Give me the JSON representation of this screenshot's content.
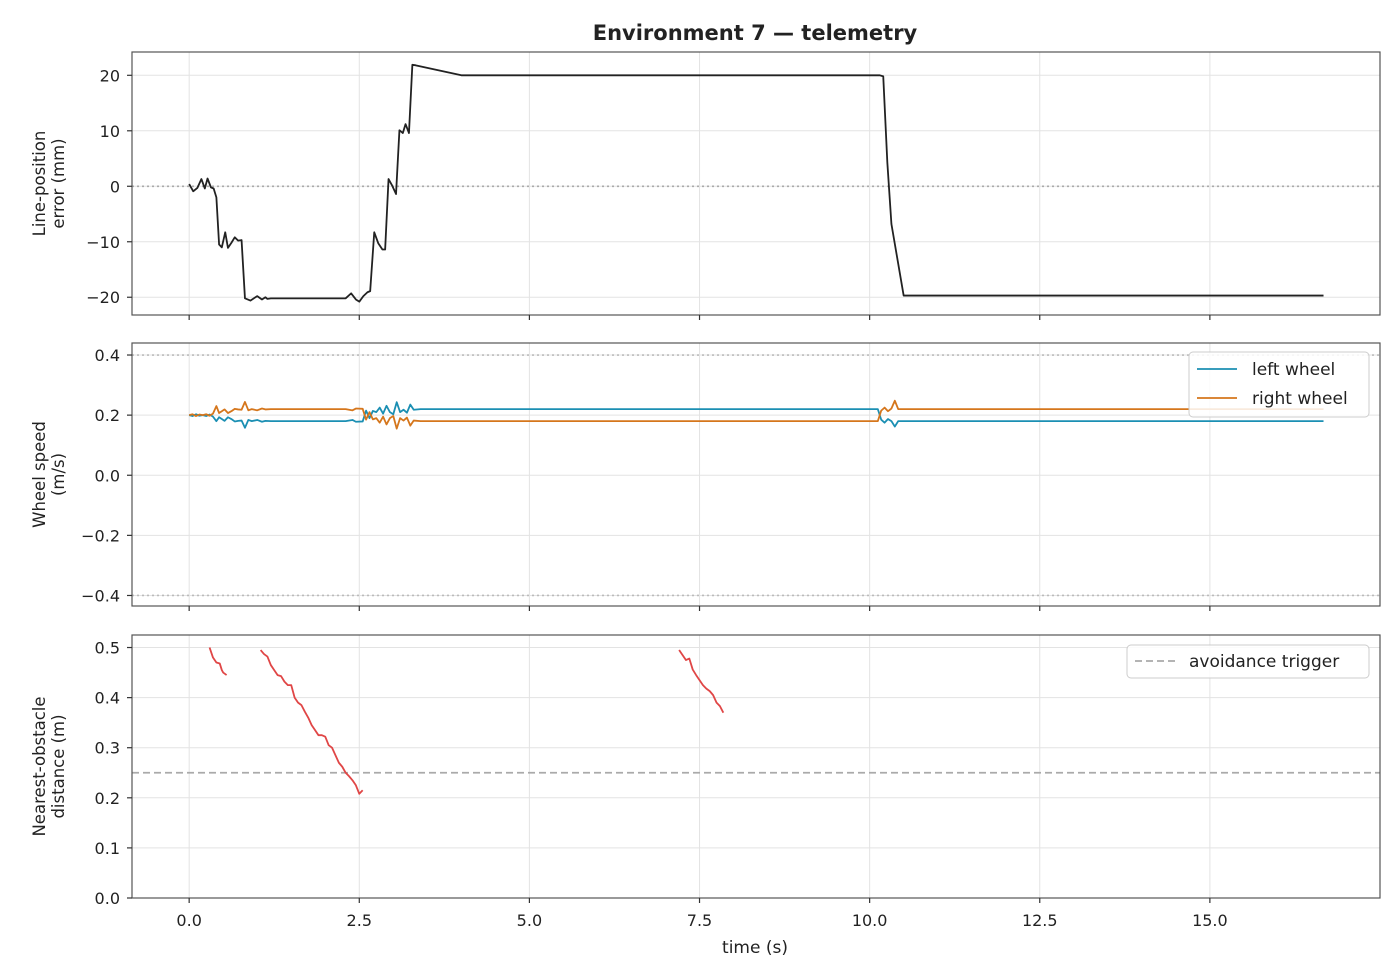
{
  "chart_data": [
    {
      "type": "line",
      "title": "Environment 7 — telemetry",
      "ylabel": [
        "Line-position",
        "error (mm)"
      ],
      "xlabel": "",
      "xlim": [
        -0.84,
        17.5
      ],
      "ylim": [
        -23.2,
        24.2
      ],
      "xticks": [
        0,
        2.5,
        5,
        7.5,
        10,
        12.5,
        15
      ],
      "xtick_labels": [],
      "yticks": [
        20,
        10,
        0,
        -10,
        -20
      ],
      "ytick_labels": [
        "20",
        "10",
        "0",
        "−10",
        "−20"
      ],
      "grid": true,
      "reference_lines": [
        {
          "y": 0,
          "style": "dotted",
          "color": "#aaaaaa"
        }
      ],
      "series": [
        {
          "color": "#222222",
          "x": [
            0.0,
            0.06,
            0.12,
            0.18,
            0.23,
            0.27,
            0.32,
            0.36,
            0.4,
            0.44,
            0.48,
            0.53,
            0.57,
            0.62,
            0.67,
            0.72,
            0.77,
            0.82,
            0.9,
            1.0,
            1.07,
            1.12,
            1.15,
            1.2,
            1.5,
            2.0,
            2.3,
            2.38,
            2.45,
            2.5,
            2.56,
            2.62,
            2.66,
            2.72,
            2.78,
            2.84,
            2.88,
            2.93,
            2.98,
            3.04,
            3.09,
            3.14,
            3.18,
            3.23,
            3.28,
            3.33,
            4.0,
            6.0,
            8.0,
            10.0,
            10.15,
            10.2,
            10.26,
            10.32,
            10.5,
            12.0,
            14.0,
            16.67
          ],
          "y": [
            0.4,
            -0.9,
            -0.3,
            1.3,
            -0.4,
            1.4,
            -0.2,
            -0.4,
            -2.0,
            -10.5,
            -11.0,
            -8.3,
            -11.1,
            -10.2,
            -9.2,
            -9.8,
            -9.7,
            -20.2,
            -20.6,
            -19.8,
            -20.4,
            -20.0,
            -20.3,
            -20.2,
            -20.2,
            -20.2,
            -20.2,
            -19.3,
            -20.4,
            -20.8,
            -19.8,
            -19.1,
            -18.9,
            -8.3,
            -10.3,
            -11.4,
            -11.4,
            1.3,
            0.2,
            -1.4,
            10.1,
            9.6,
            11.2,
            9.6,
            21.9,
            21.8,
            20.0,
            20.0,
            20.0,
            20.0,
            20.0,
            19.8,
            4.3,
            -6.8,
            -19.7,
            -19.7,
            -19.7,
            -19.7
          ]
        }
      ]
    },
    {
      "type": "line",
      "ylabel": [
        "Wheel speed",
        "(m/s)"
      ],
      "xlabel": "",
      "xlim": [
        -0.84,
        17.5
      ],
      "ylim": [
        -0.435,
        0.44
      ],
      "xticks": [
        0,
        2.5,
        5,
        7.5,
        10,
        12.5,
        15
      ],
      "xtick_labels": [],
      "yticks": [
        0.4,
        0.2,
        0.0,
        -0.2,
        -0.4
      ],
      "ytick_labels": [
        "0.4",
        "0.2",
        "0.0",
        "−0.2",
        "−0.4"
      ],
      "grid": true,
      "reference_lines": [
        {
          "y": 0.4,
          "style": "dotted",
          "color": "#bbbbbb"
        },
        {
          "y": -0.4,
          "style": "dotted",
          "color": "#bbbbbb"
        }
      ],
      "legend": {
        "placement": "upper right"
      },
      "series": [
        {
          "name": "left wheel",
          "color": "#1b8fb3",
          "x": [
            0.0,
            0.05,
            0.1,
            0.15,
            0.2,
            0.25,
            0.3,
            0.35,
            0.4,
            0.44,
            0.48,
            0.52,
            0.57,
            0.62,
            0.67,
            0.72,
            0.77,
            0.82,
            0.87,
            0.92,
            1.0,
            1.07,
            1.12,
            1.2,
            1.5,
            2.0,
            2.3,
            2.4,
            2.45,
            2.55,
            2.6,
            2.65,
            2.7,
            2.75,
            2.8,
            2.85,
            2.9,
            2.95,
            3.0,
            3.05,
            3.1,
            3.15,
            3.2,
            3.25,
            3.3,
            3.4,
            4.0,
            6.0,
            8.0,
            10.0,
            10.12,
            10.17,
            10.22,
            10.27,
            10.32,
            10.37,
            10.42,
            10.5,
            12.0,
            14.0,
            16.67
          ],
          "y": [
            0.2,
            0.197,
            0.203,
            0.198,
            0.2,
            0.197,
            0.202,
            0.195,
            0.18,
            0.193,
            0.187,
            0.181,
            0.193,
            0.187,
            0.179,
            0.181,
            0.182,
            0.158,
            0.184,
            0.18,
            0.184,
            0.178,
            0.181,
            0.18,
            0.18,
            0.18,
            0.18,
            0.184,
            0.178,
            0.179,
            0.215,
            0.19,
            0.214,
            0.21,
            0.225,
            0.205,
            0.231,
            0.21,
            0.203,
            0.243,
            0.21,
            0.218,
            0.208,
            0.235,
            0.218,
            0.22,
            0.22,
            0.22,
            0.22,
            0.22,
            0.22,
            0.185,
            0.175,
            0.187,
            0.18,
            0.162,
            0.18,
            0.18,
            0.18,
            0.18,
            0.18
          ]
        },
        {
          "name": "right wheel",
          "color": "#d5761c",
          "x": [
            0.0,
            0.05,
            0.1,
            0.15,
            0.2,
            0.25,
            0.3,
            0.35,
            0.4,
            0.44,
            0.48,
            0.52,
            0.57,
            0.62,
            0.67,
            0.72,
            0.77,
            0.82,
            0.87,
            0.92,
            1.0,
            1.07,
            1.12,
            1.2,
            1.5,
            2.0,
            2.3,
            2.4,
            2.45,
            2.55,
            2.6,
            2.65,
            2.7,
            2.75,
            2.8,
            2.85,
            2.9,
            2.95,
            3.0,
            3.05,
            3.1,
            3.15,
            3.2,
            3.25,
            3.3,
            3.4,
            4.0,
            6.0,
            8.0,
            10.0,
            10.12,
            10.17,
            10.22,
            10.27,
            10.32,
            10.37,
            10.42,
            10.5,
            12.0,
            14.0,
            16.67
          ],
          "y": [
            0.2,
            0.203,
            0.197,
            0.202,
            0.2,
            0.203,
            0.198,
            0.205,
            0.23,
            0.207,
            0.213,
            0.219,
            0.207,
            0.213,
            0.221,
            0.219,
            0.218,
            0.244,
            0.216,
            0.22,
            0.216,
            0.222,
            0.219,
            0.22,
            0.22,
            0.22,
            0.22,
            0.216,
            0.222,
            0.221,
            0.185,
            0.21,
            0.186,
            0.19,
            0.175,
            0.195,
            0.169,
            0.19,
            0.197,
            0.155,
            0.19,
            0.182,
            0.192,
            0.165,
            0.182,
            0.18,
            0.18,
            0.18,
            0.18,
            0.18,
            0.18,
            0.215,
            0.225,
            0.213,
            0.222,
            0.248,
            0.22,
            0.22,
            0.22,
            0.22,
            0.22
          ]
        }
      ]
    },
    {
      "type": "line",
      "ylabel": [
        "Nearest-obstacle",
        "distance (m)"
      ],
      "xlabel": "time (s)",
      "xlim": [
        -0.84,
        17.5
      ],
      "ylim": [
        0.0,
        0.525
      ],
      "xticks": [
        0,
        2.5,
        5,
        7.5,
        10,
        12.5,
        15
      ],
      "xtick_labels": [
        "0.0",
        "2.5",
        "5.0",
        "7.5",
        "10.0",
        "12.5",
        "15.0"
      ],
      "yticks": [
        0.5,
        0.4,
        0.3,
        0.2,
        0.1,
        0.0
      ],
      "ytick_labels": [
        "0.5",
        "0.4",
        "0.3",
        "0.2",
        "0.1",
        "0.0"
      ],
      "grid": true,
      "reference_lines": [
        {
          "y": 0.25,
          "style": "dashed",
          "color": "#aaaaaa",
          "name": "avoidance trigger"
        }
      ],
      "legend": {
        "placement": "upper right"
      },
      "series": [
        {
          "color": "#e04646",
          "segments": [
            {
              "x": [
                0.3,
                0.35,
                0.4,
                0.45,
                0.48,
                0.5,
                0.55
              ],
              "y": [
                0.5,
                0.48,
                0.47,
                0.468,
                0.455,
                0.45,
                0.445
              ]
            },
            {
              "x": [
                1.05,
                1.1,
                1.15,
                1.2,
                1.25,
                1.3,
                1.35,
                1.4,
                1.45,
                1.5,
                1.55,
                1.6,
                1.65,
                1.7,
                1.75,
                1.8,
                1.85,
                1.9,
                1.95,
                2.0,
                2.05,
                2.1,
                2.15,
                2.2,
                2.25,
                2.3,
                2.35,
                2.4,
                2.45,
                2.5,
                2.55
              ],
              "y": [
                0.495,
                0.487,
                0.482,
                0.465,
                0.455,
                0.445,
                0.443,
                0.432,
                0.425,
                0.425,
                0.4,
                0.39,
                0.385,
                0.372,
                0.36,
                0.345,
                0.335,
                0.325,
                0.325,
                0.322,
                0.305,
                0.3,
                0.285,
                0.27,
                0.262,
                0.25,
                0.243,
                0.235,
                0.225,
                0.208,
                0.215
              ]
            },
            {
              "x": [
                7.2,
                7.25,
                7.3,
                7.35,
                7.4,
                7.45,
                7.5,
                7.55,
                7.6,
                7.65,
                7.7,
                7.75,
                7.8,
                7.85
              ],
              "y": [
                0.495,
                0.485,
                0.475,
                0.478,
                0.456,
                0.445,
                0.435,
                0.425,
                0.418,
                0.413,
                0.405,
                0.39,
                0.383,
                0.37
              ]
            }
          ]
        }
      ]
    }
  ],
  "legend_line_colors": {
    "left": "#1b8fb3",
    "right": "#d5761c",
    "trigger": "#aaaaaa"
  }
}
